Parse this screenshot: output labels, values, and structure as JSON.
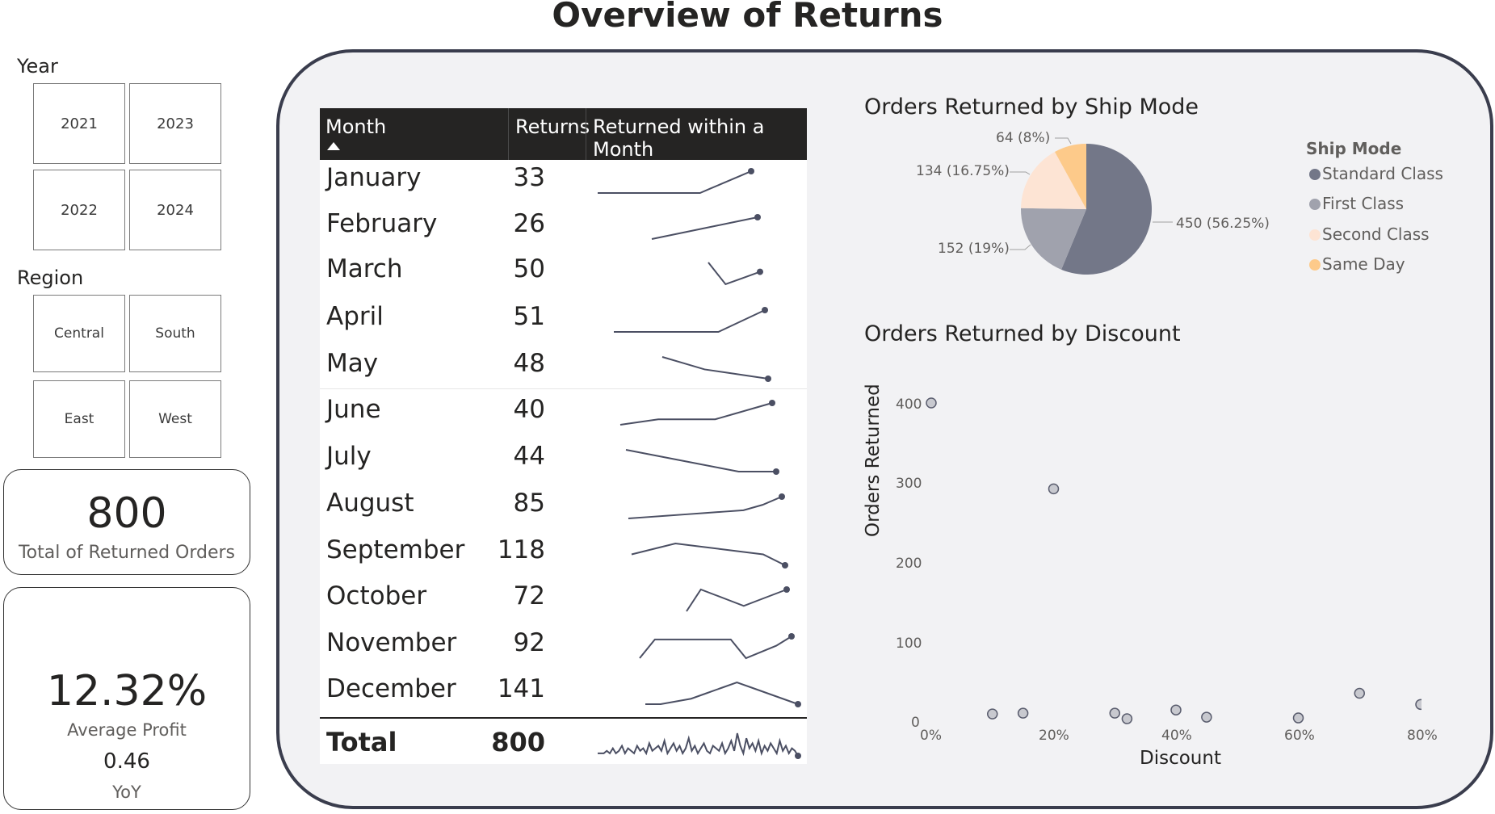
{
  "page": {
    "title": "Overview of Returns"
  },
  "slicers": {
    "year": {
      "label": "Year",
      "options": [
        "2021",
        "2023",
        "2022",
        "2024"
      ]
    },
    "region": {
      "label": "Region",
      "options": [
        "Central",
        "South",
        "East",
        "West"
      ]
    }
  },
  "kpi": {
    "total_returned": {
      "value": "800",
      "label": "Total of Returned Orders"
    },
    "avg_profit": {
      "value": "12.32%",
      "label": "Average Profit",
      "sub_value": "0.46",
      "sub_label": "YoY"
    }
  },
  "table": {
    "headers": {
      "month": "Month",
      "returns": "Returns",
      "spark": "Returned within a Month"
    },
    "rows": [
      {
        "month": "January",
        "returns": "33"
      },
      {
        "month": "February",
        "returns": "26"
      },
      {
        "month": "March",
        "returns": "50"
      },
      {
        "month": "April",
        "returns": "51"
      },
      {
        "month": "May",
        "returns": "48"
      },
      {
        "month": "June",
        "returns": "40"
      },
      {
        "month": "July",
        "returns": "44"
      },
      {
        "month": "August",
        "returns": "85"
      },
      {
        "month": "September",
        "returns": "118"
      },
      {
        "month": "October",
        "returns": "72"
      },
      {
        "month": "November",
        "returns": "92"
      },
      {
        "month": "December",
        "returns": "141"
      }
    ],
    "total": {
      "label": "Total",
      "returns": "800"
    }
  },
  "colors": {
    "panel_border": "#3a3d4d",
    "panel_bg": "#f2f2f4",
    "header_bg": "#252423",
    "spark": "#4b4f63",
    "standard": "#737788",
    "first": "#a0a2ad",
    "second": "#fde4d4",
    "sameday": "#fdca8a"
  },
  "chart_data": [
    {
      "type": "pie",
      "title": "Orders Returned by Ship Mode",
      "legend_title": "Ship Mode",
      "legend_position": "right",
      "categories": [
        "Standard Class",
        "First Class",
        "Second Class",
        "Same Day"
      ],
      "values": [
        450,
        152,
        134,
        64
      ],
      "labels": [
        "450 (56.25%)",
        "152 (19%)",
        "134 (16.75%)",
        "64 (8%)"
      ]
    },
    {
      "type": "scatter",
      "title": "Orders Returned by Discount",
      "xlabel": "Discount",
      "ylabel": "Orders Returned",
      "xlim": [
        0,
        0.8
      ],
      "ylim": [
        0,
        400
      ],
      "xticks": [
        "0%",
        "20%",
        "40%",
        "60%",
        "80%"
      ],
      "yticks": [
        "0",
        "100",
        "200",
        "300",
        "400"
      ],
      "grid": false,
      "points": [
        {
          "x": 0.0,
          "y": 400
        },
        {
          "x": 0.1,
          "y": 9
        },
        {
          "x": 0.15,
          "y": 10
        },
        {
          "x": 0.2,
          "y": 292
        },
        {
          "x": 0.3,
          "y": 10
        },
        {
          "x": 0.32,
          "y": 3
        },
        {
          "x": 0.4,
          "y": 14
        },
        {
          "x": 0.45,
          "y": 5
        },
        {
          "x": 0.6,
          "y": 4
        },
        {
          "x": 0.7,
          "y": 35
        },
        {
          "x": 0.8,
          "y": 21
        }
      ]
    },
    {
      "type": "line",
      "title": "Returned within a Month",
      "series": [
        {
          "month": "January",
          "values": [
            5,
            5,
            5,
            5,
            5,
            5,
            5,
            5,
            5,
            5,
            5,
            6,
            7,
            8,
            9,
            10
          ]
        },
        {
          "month": "February",
          "values": [
            2,
            3,
            4,
            5,
            6,
            7,
            8,
            9,
            10
          ]
        },
        {
          "month": "March",
          "values": [
            9,
            2,
            4,
            6
          ]
        },
        {
          "month": "April",
          "values": [
            2,
            2,
            2,
            2,
            2,
            2,
            2,
            2,
            2,
            2,
            4,
            6,
            8,
            10
          ]
        },
        {
          "month": "May",
          "values": [
            10,
            8,
            6,
            5,
            4,
            3
          ]
        },
        {
          "month": "June",
          "values": [
            2,
            3,
            4,
            4,
            4,
            4,
            6,
            8,
            10
          ]
        },
        {
          "month": "July",
          "values": [
            10,
            9,
            8,
            7,
            6,
            5,
            4,
            4,
            4
          ]
        },
        {
          "month": "August",
          "values": [
            2,
            2.5,
            3,
            3.5,
            4,
            4.5,
            5,
            7,
            10
          ]
        },
        {
          "month": "September",
          "values": [
            5,
            7,
            9,
            8,
            7,
            6,
            5,
            1
          ]
        },
        {
          "month": "October",
          "values": [
            1,
            9,
            7,
            5,
            3,
            5,
            7,
            9
          ]
        },
        {
          "month": "November",
          "values": [
            3,
            9,
            9,
            9,
            9,
            9,
            9,
            3,
            5,
            7,
            10
          ]
        },
        {
          "month": "December",
          "values": [
            2,
            2,
            3,
            4,
            6,
            8,
            10,
            8,
            6,
            4,
            2
          ]
        },
        {
          "month": "Total",
          "values": [
            3,
            3,
            3,
            4,
            3,
            5,
            3,
            4,
            6,
            3,
            5,
            4,
            3,
            6,
            4,
            5,
            3,
            7,
            4,
            5,
            6,
            4,
            8,
            3,
            5,
            7,
            4,
            6,
            3,
            5,
            9,
            4,
            6,
            3,
            5,
            7,
            4,
            3,
            6,
            5,
            4,
            7,
            3,
            5,
            8,
            4,
            11,
            6,
            3,
            9,
            5,
            7,
            4,
            8,
            3,
            6,
            4,
            7,
            5,
            3,
            8,
            4,
            6,
            3,
            5,
            4,
            2
          ]
        }
      ]
    }
  ]
}
